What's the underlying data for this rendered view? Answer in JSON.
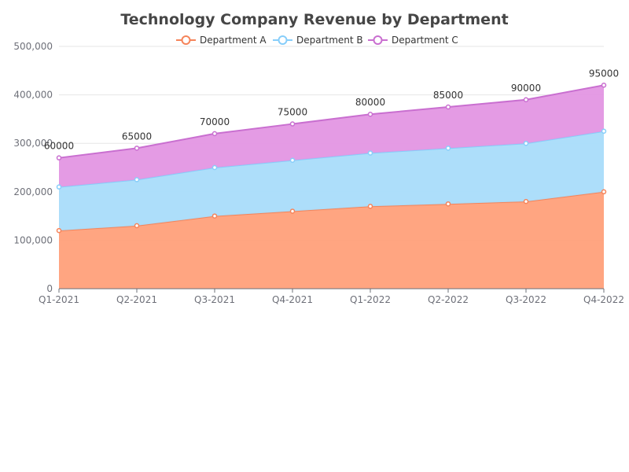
{
  "chart_data": {
    "type": "area",
    "stacked": true,
    "title": "Technology Company Revenue by Department",
    "categories": [
      "Q1-2021",
      "Q2-2021",
      "Q3-2021",
      "Q4-2021",
      "Q1-2022",
      "Q2-2022",
      "Q3-2022",
      "Q4-2022"
    ],
    "series": [
      {
        "name": "Department A",
        "color": "#f5845a",
        "fill": "#ffa07a",
        "values": [
          120000,
          130000,
          150000,
          160000,
          170000,
          175000,
          180000,
          200000
        ]
      },
      {
        "name": "Department B",
        "color": "#87cefa",
        "fill": "#a9dcfa",
        "values": [
          90000,
          95000,
          100000,
          105000,
          110000,
          115000,
          120000,
          125000
        ]
      },
      {
        "name": "Department C",
        "color": "#c96fd0",
        "fill": "#e396e3",
        "values": [
          60000,
          65000,
          70000,
          75000,
          80000,
          85000,
          90000,
          95000
        ]
      }
    ],
    "data_labels": {
      "series": "Department C",
      "values": [
        "60000",
        "65000",
        "70000",
        "75000",
        "80000",
        "85000",
        "90000",
        "95000"
      ]
    },
    "y_ticks": [
      "0",
      "100,000",
      "200,000",
      "300,000",
      "400,000",
      "500,000"
    ],
    "ylim": [
      0,
      500000
    ],
    "grid": true,
    "legend_position": "top-center"
  }
}
